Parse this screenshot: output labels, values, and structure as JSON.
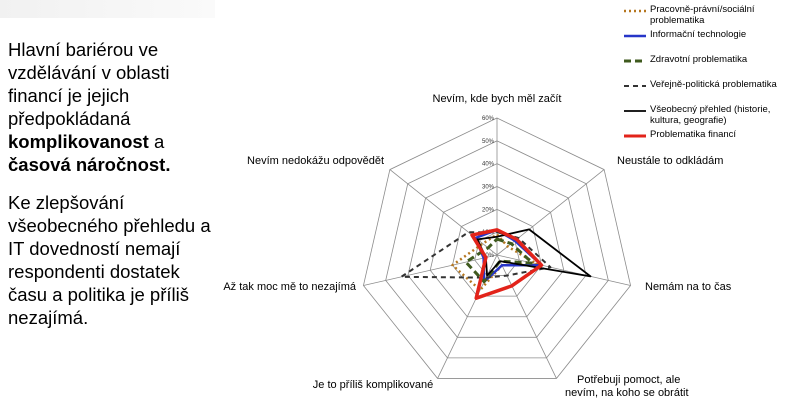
{
  "text_block": {
    "p1_a": "Hlavní bariérou ve vzdělávání v oblasti financí je jejich předpokládaná ",
    "p1_b": "komplikovanost",
    "p1_c": " a ",
    "p1_d": "časová náročnost.",
    "p2": "Ke zlepšování všeobecného přehledu a IT dovedností nemají respondenti dostatek času a politika je příliš nezajímá."
  },
  "chart_data": {
    "type": "radar",
    "title": "",
    "categories": [
      "Nevím, kde bych měl začít",
      "Neustále to odkládám",
      "Nemám na to čas",
      "Potřebuji pomoct, ale nevím, na koho se obrátit",
      "Je to příliš komplikované",
      "Až tak moc mě to nezajímá",
      "Nevím nedokážu odpovědět"
    ],
    "category_label_lines": [
      [
        "Nevím, kde bych měl začít"
      ],
      [
        "Neustále to odkládám"
      ],
      [
        "Nemám na to čas"
      ],
      [
        "Potřebuji pomoct, ale",
        "nevím, na koho se obrátit"
      ],
      [
        "Je to příliš komplikované"
      ],
      [
        "Až tak moc mě to nezajímá"
      ],
      [
        "Nevím nedokážu odpovědět"
      ]
    ],
    "rlim": [
      0,
      60
    ],
    "ticks": [
      0,
      10,
      20,
      30,
      40,
      50,
      60
    ],
    "tick_labels": [
      "0%",
      "10%",
      "20%",
      "30%",
      "40%",
      "50%",
      "60%"
    ],
    "grid": true,
    "legend_position": "top-right",
    "series": [
      {
        "name": "Pracovně-právní/sociální problematika",
        "values": [
          9,
          6,
          18,
          5,
          17,
          20,
          8
        ],
        "color": "#b5761f",
        "dash": "2,3",
        "width": 2.5
      },
      {
        "name": "Informační technologie",
        "values": [
          11,
          10,
          20,
          5,
          13,
          6,
          12
        ],
        "color": "#2635c8",
        "dash": "",
        "width": 2.5
      },
      {
        "name": "Zdravotní problematika",
        "values": [
          7,
          8,
          16,
          3,
          13,
          14,
          5
        ],
        "color": "#3f5a1e",
        "dash": "7,4",
        "width": 3
      },
      {
        "name": "Veřejně-politická problematika",
        "values": [
          10,
          12,
          24,
          10,
          11,
          43,
          16
        ],
        "color": "#333333",
        "dash": "5,4",
        "width": 2
      },
      {
        "name": "Všeobecný přehled (historie, kultura, geografie)",
        "values": [
          8,
          18,
          42,
          3,
          10,
          5,
          11
        ],
        "color": "#000000",
        "dash": "",
        "width": 1.8
      },
      {
        "name": "Problematika financí",
        "values": [
          11,
          11,
          20,
          15,
          21,
          5,
          14
        ],
        "color": "#e2231a",
        "dash": "",
        "width": 3.5
      }
    ]
  }
}
